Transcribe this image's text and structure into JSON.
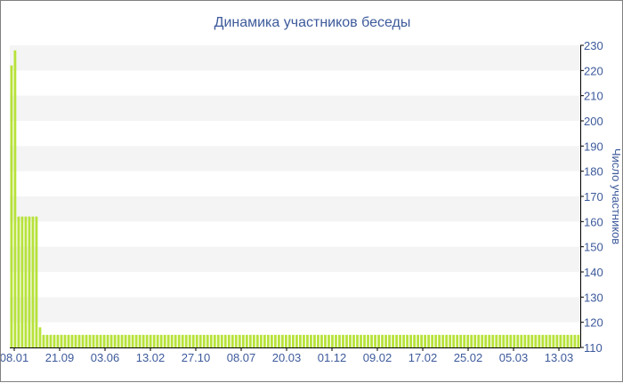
{
  "chart_data": {
    "type": "bar",
    "title": "Динамика участников беседы",
    "xlabel": "",
    "ylabel": "Число участников",
    "ylim": [
      110,
      230
    ],
    "y_ticks": [
      110,
      120,
      130,
      140,
      150,
      160,
      170,
      180,
      190,
      200,
      210,
      220,
      230
    ],
    "x_tick_labels": [
      "08.01",
      "21.09",
      "03.06",
      "13.02",
      "27.10",
      "08.07",
      "20.03",
      "01.12",
      "09.02",
      "17.02",
      "25.02",
      "05.03",
      "13.03"
    ],
    "grid": "horizontal bands",
    "colors": {
      "bar": "#b7e23a",
      "band": "#f4f4f4",
      "axis": "#000000",
      "text": "#3d5a9b"
    },
    "values": [
      222,
      228,
      162,
      162,
      162,
      162,
      162,
      162,
      118,
      115,
      115,
      115,
      115,
      115,
      115,
      115,
      115,
      115,
      115,
      115,
      115,
      115,
      115,
      115,
      115,
      115,
      115,
      115,
      115,
      115,
      115,
      115,
      115,
      115,
      115,
      115,
      115,
      115,
      115,
      115,
      115,
      115,
      115,
      115,
      115,
      115,
      115,
      115,
      115,
      115,
      115,
      115,
      115,
      115,
      115,
      115,
      115,
      115,
      115,
      115,
      115,
      115,
      115,
      115,
      115,
      115,
      115,
      115,
      115,
      115,
      115,
      115,
      115,
      115,
      115,
      115,
      115,
      115,
      115,
      115,
      115,
      115,
      115,
      115,
      115,
      115,
      115,
      115,
      115,
      115,
      115,
      115,
      115,
      115,
      115,
      115,
      115,
      115,
      115,
      115,
      115,
      115,
      115,
      115,
      115,
      115,
      115,
      115,
      115,
      115,
      115,
      115,
      115,
      115,
      115,
      115,
      115,
      115,
      115,
      115,
      115,
      115,
      115,
      115,
      115,
      115,
      115,
      115,
      115,
      115,
      115,
      115,
      115,
      115,
      115,
      115,
      115,
      115,
      115,
      115,
      115,
      115,
      115,
      115,
      115,
      115,
      115,
      115,
      115,
      115,
      115,
      115,
      115,
      115,
      115,
      115,
      115,
      115,
      115,
      115
    ]
  }
}
